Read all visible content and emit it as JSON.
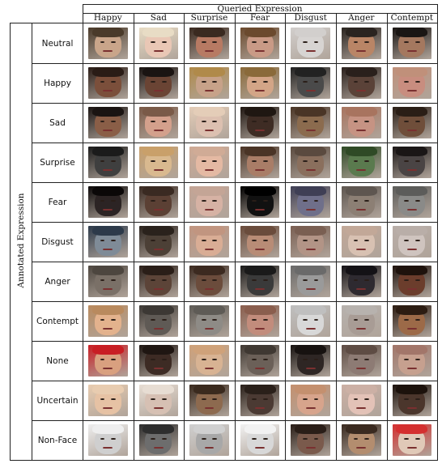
{
  "header": {
    "queried_title": "Queried Expression",
    "columns": [
      "Happy",
      "Sad",
      "Surprise",
      "Fear",
      "Disgust",
      "Anger",
      "Contempt"
    ]
  },
  "side": {
    "annotated_title": "Annotated Expression",
    "rows": [
      "Neutral",
      "Happy",
      "Sad",
      "Surprise",
      "Fear",
      "Disgust",
      "Anger",
      "Contempt",
      "None",
      "Uncertain",
      "Non-Face"
    ]
  },
  "tiles": [
    [
      "#c9a58a",
      "#e9c7b5",
      "#b77a63",
      "#c99a86",
      "#d7d4d2",
      "#b98566",
      "#a4785f"
    ],
    [
      "#7b4f3b",
      "#6a4434",
      "#c7a289",
      "#d3a587",
      "#4a4a4a",
      "#5a4238",
      "#c88d7f"
    ],
    [
      "#8a5e47",
      "#d3a08c",
      "#dcc0b0",
      "#3e2c24",
      "#8b6b4e",
      "#c69383",
      "#6f4e3a"
    ],
    [
      "#3f3f3f",
      "#d9b98f",
      "#e4b9a3",
      "#a97d67",
      "#8a6f5d",
      "#5a7a4e",
      "#4a4444"
    ],
    [
      "#2c2424",
      "#5b4034",
      "#d6b2a4",
      "#111111",
      "#6f6f8a",
      "#8c7f74",
      "#8a8a88"
    ],
    [
      "#7f8b97",
      "#4c4036",
      "#d9ad95",
      "#b88c76",
      "#b29486",
      "#d8c1b2",
      "#cfc4bf"
    ],
    [
      "#7a7067",
      "#5c4438",
      "#6b4c3c",
      "#3a3a3a",
      "#9a9a9a",
      "#2e2a30",
      "#6b3d2c"
    ],
    [
      "#e3b28d",
      "#5f5a55",
      "#8e8b86",
      "#c28c7c",
      "#d8d8d8",
      "#a89c95",
      "#9c6a48"
    ],
    [
      "#d9a07f",
      "#3d2b24",
      "#d8b393",
      "#6b6058",
      "#2e2624",
      "#8d7b74",
      "#c6a08f"
    ],
    [
      "#e6c2a4",
      "#d6c0b3",
      "#8d6a4f",
      "#4b3a33",
      "#d7a48c",
      "#e3c2b7",
      "#4b362c"
    ],
    [
      "#cfcfcf",
      "#6d6d6d",
      "#a8a8a8",
      "#d8d8d8",
      "#7a5a4c",
      "#b38d6f",
      "#e0c9b8"
    ]
  ],
  "hair": [
    [
      "#4a3a2a",
      "#e8dcc5",
      "#3a2a20",
      "#6b4a2e",
      "#d2cfcd",
      "#2a2420",
      "#1a1614"
    ],
    [
      "#2a1c16",
      "#1a1412",
      "#b08a4a",
      "#8a6a3a",
      "#222222",
      "#2a201c",
      "#c0907a"
    ],
    [
      "#1a1412",
      "#7a5a48",
      "#e4cdb8",
      "#1f1712",
      "#4a3526",
      "#a8745f",
      "#2a1e16"
    ],
    [
      "#1b1b1b",
      "#c9a06a",
      "#d0ab96",
      "#4a3426",
      "#5a4a3f",
      "#2f4a26",
      "#1a1616"
    ],
    [
      "#0b0808",
      "#3a2a22",
      "#c4a596",
      "#000000",
      "#3f3f55",
      "#5e5650",
      "#5c5c5a"
    ],
    [
      "#2d3a4a",
      "#2a221c",
      "#c19580",
      "#6a4c3c",
      "#7a5f52",
      "#c2a898",
      "#b9aea8"
    ],
    [
      "#4d463f",
      "#2a1e18",
      "#3c2a20",
      "#1a1a1a",
      "#6a6a6a",
      "#141216",
      "#1e120c"
    ],
    [
      "#b98a5e",
      "#3c3834",
      "#5e5b56",
      "#8a5e4e",
      "#bfbfbf",
      "#b7b2ae",
      "#2c1c12"
    ],
    [
      "#c81e24",
      "#1f1612",
      "#cfa27a",
      "#3f3832",
      "#171210",
      "#5e4c44",
      "#a2766a"
    ],
    [
      "#e8ccb0",
      "#e7ddd3",
      "#3a2a1e",
      "#2a201a",
      "#c4906f",
      "#ccb0a5",
      "#1c120c"
    ],
    [
      "#eeeeee",
      "#2e2e2e",
      "#d0d0d0",
      "#f2f2f2",
      "#2a1e18",
      "#3a2a20",
      "#d43030"
    ]
  ]
}
